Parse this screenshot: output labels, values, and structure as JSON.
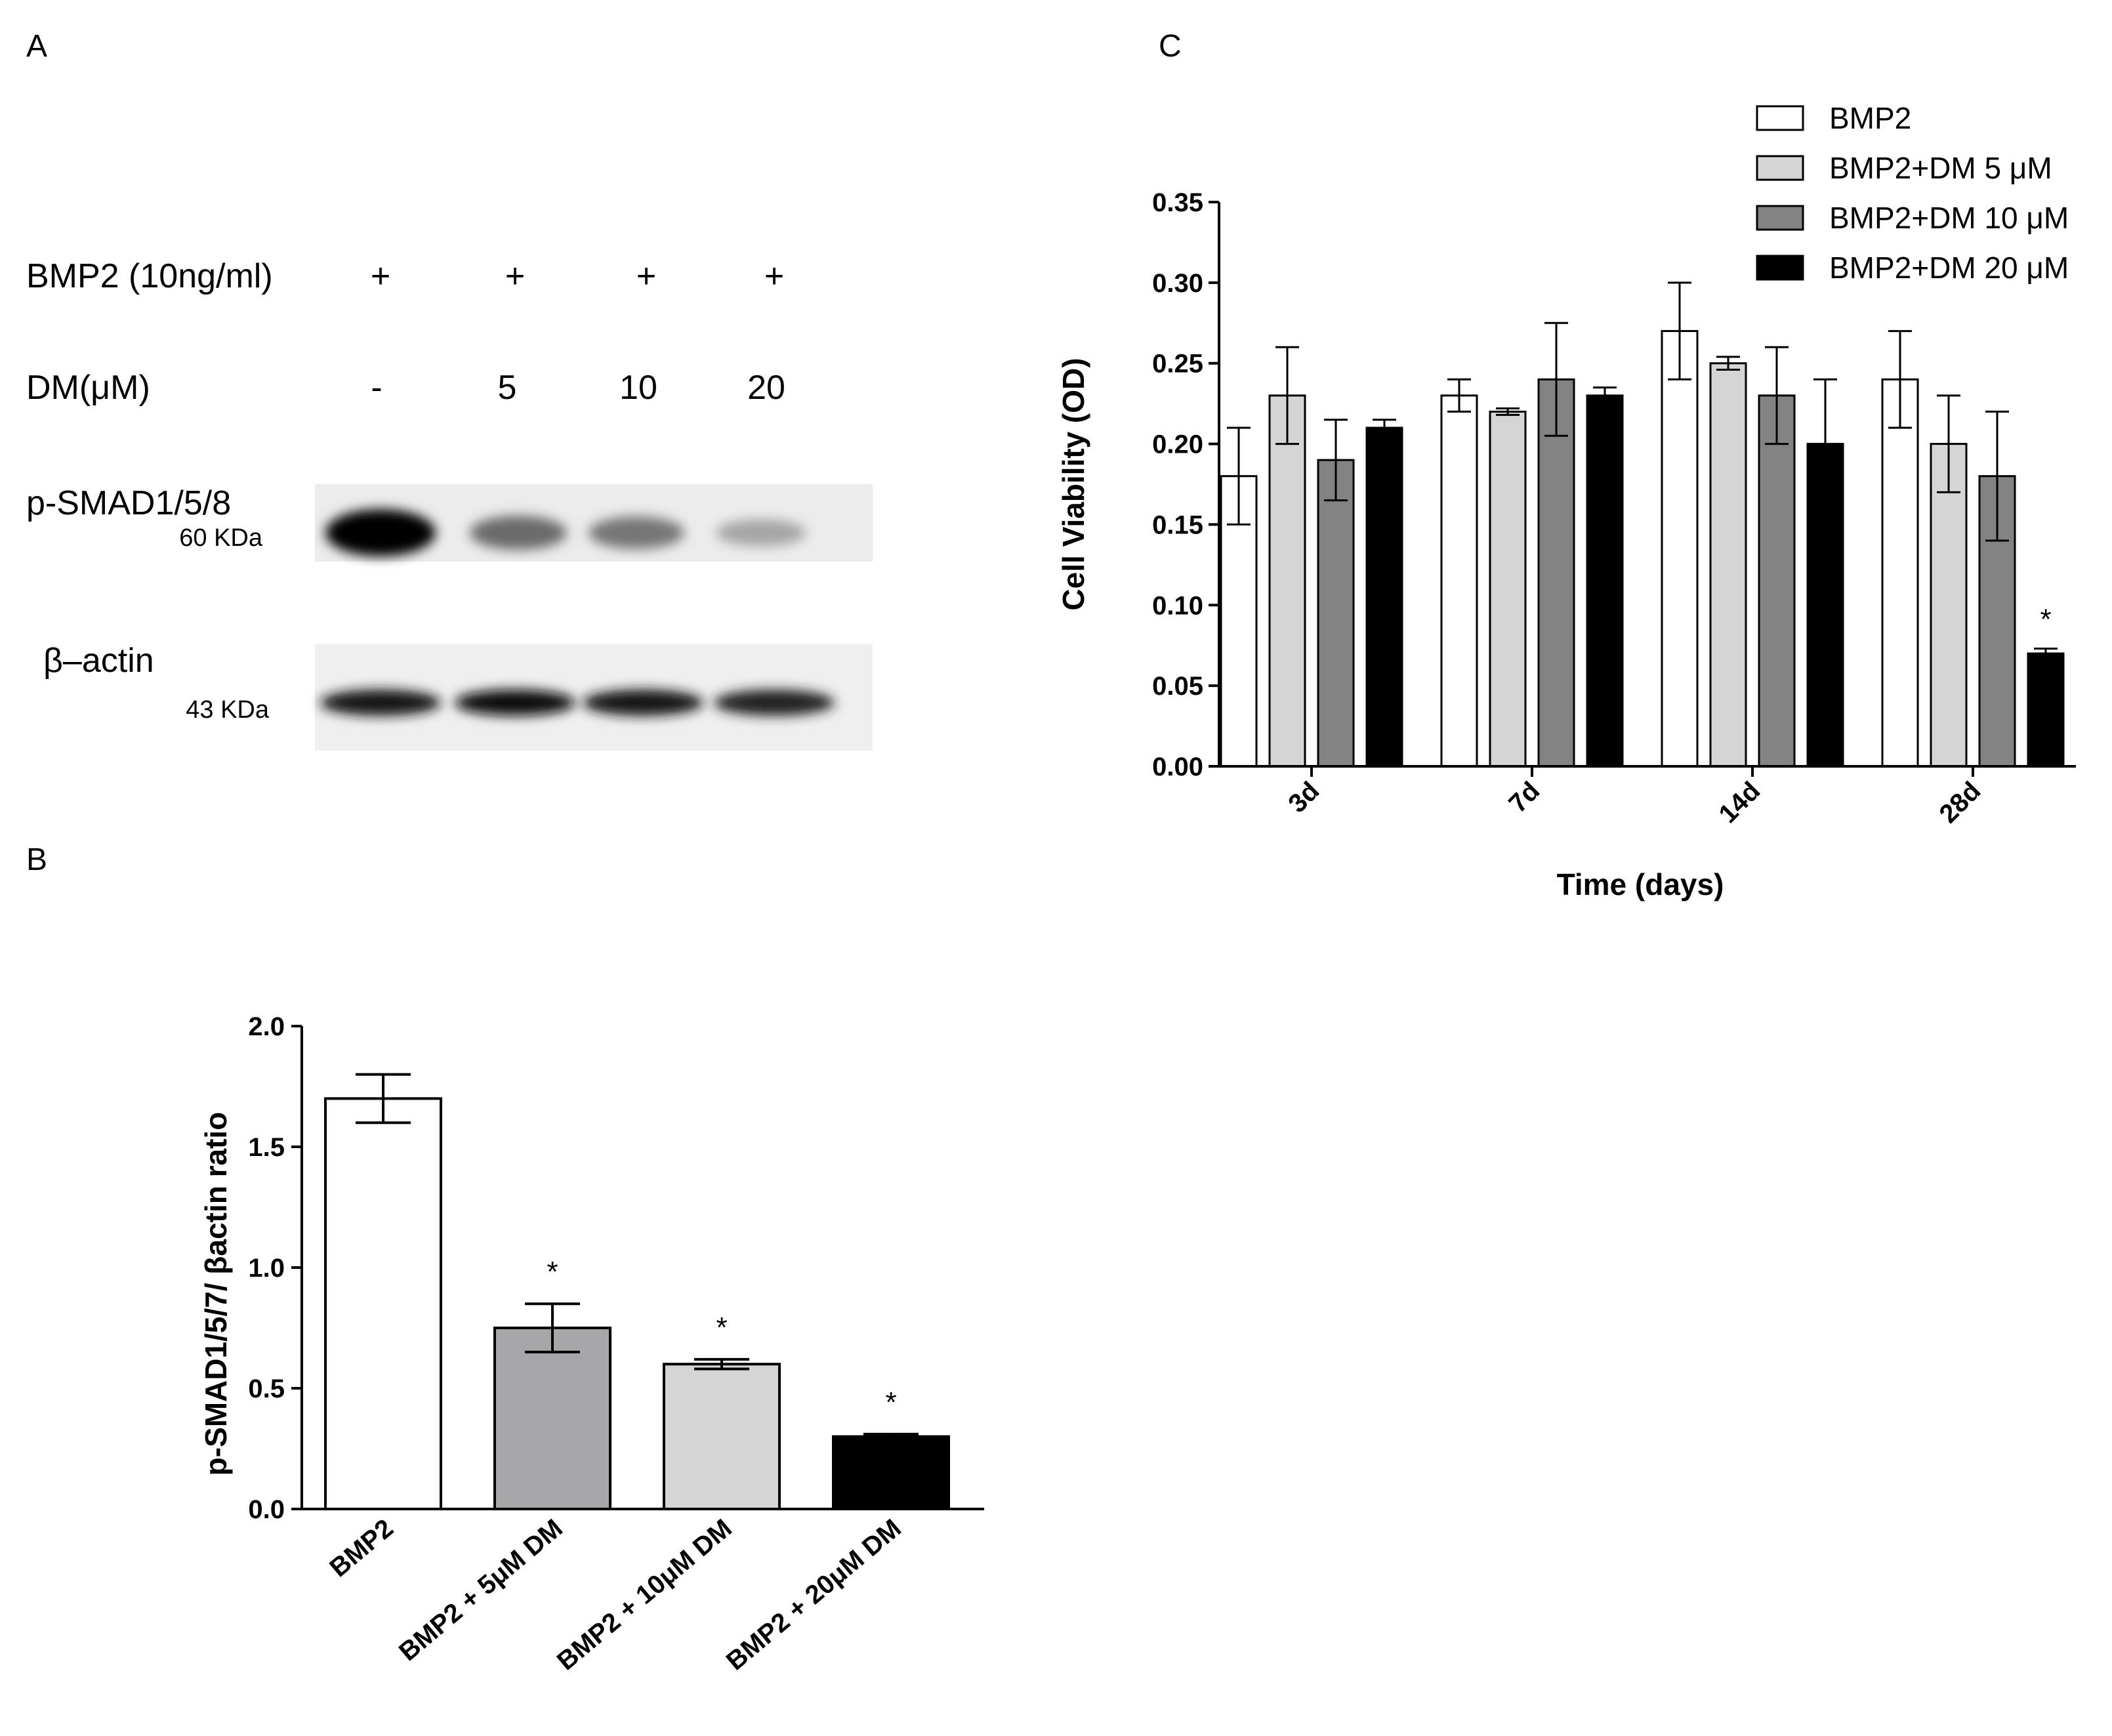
{
  "panels": {
    "a": "A",
    "b": "B",
    "c": "C"
  },
  "western_blot": {
    "row_labels": {
      "bmp2": "BMP2 (10ng/ml)",
      "dm": "DM(μM)",
      "psmad": "p-SMAD1/5/8",
      "psmad_kda": "60 KDa",
      "actin": "β–actin",
      "actin_kda": "43 KDa"
    },
    "bmp2_signs": [
      "+",
      "+",
      "+",
      "+"
    ],
    "dm_values": [
      "-",
      "5",
      "10",
      "20"
    ],
    "psmad_band_intensity": [
      1.0,
      0.55,
      0.5,
      0.3
    ],
    "actin_band_intensity": [
      0.95,
      1.0,
      0.95,
      0.9
    ]
  },
  "chart_data": [
    {
      "type": "bar",
      "panel": "B",
      "title": "",
      "xlabel": "",
      "ylabel": "p-SMAD1/5/7/ βactin ratio",
      "ylim": [
        0,
        2.0
      ],
      "yticks": [
        "0.0",
        "0.5",
        "1.0",
        "1.5",
        "2.0"
      ],
      "categories": [
        "BMP2",
        "BMP2 + 5μM DM",
        "BMP2 + 10μM DM",
        "BMP2 + 20μM DM"
      ],
      "values": [
        1.7,
        0.75,
        0.6,
        0.3
      ],
      "errors": [
        0.1,
        0.1,
        0.02,
        0.01
      ],
      "significance": [
        "",
        "*",
        "*",
        "*"
      ],
      "colors": [
        "#ffffff",
        "#a7a6a9",
        "#d5d5d5",
        "#000000"
      ]
    },
    {
      "type": "bar",
      "panel": "C",
      "title": "",
      "xlabel": "Time (days)",
      "ylabel": "Cell Viability (OD)",
      "ylim": [
        0,
        0.35
      ],
      "yticks": [
        "0.00",
        "0.05",
        "0.10",
        "0.15",
        "0.20",
        "0.25",
        "0.30",
        "0.35"
      ],
      "categories": [
        "3d",
        "7d",
        "14d",
        "28d"
      ],
      "legend_position": "top-right",
      "series": [
        {
          "name": "BMP2",
          "color": "#ffffff",
          "values": [
            0.18,
            0.23,
            0.27,
            0.24
          ],
          "errors": [
            0.03,
            0.01,
            0.03,
            0.03
          ],
          "significance": [
            "",
            "",
            "",
            ""
          ]
        },
        {
          "name": "BMP2+DM 5 μM",
          "color": "#d5d5d5",
          "values": [
            0.23,
            0.22,
            0.25,
            0.2
          ],
          "errors": [
            0.03,
            0.002,
            0.004,
            0.03
          ],
          "significance": [
            "",
            "",
            "",
            ""
          ]
        },
        {
          "name": "BMP2+DM 10 μM",
          "color": "#838383",
          "values": [
            0.19,
            0.24,
            0.23,
            0.18
          ],
          "errors": [
            0.025,
            0.035,
            0.03,
            0.04
          ],
          "significance": [
            "",
            "",
            "",
            ""
          ]
        },
        {
          "name": "BMP2+DM 20 μM",
          "color": "#000000",
          "values": [
            0.21,
            0.23,
            0.2,
            0.07
          ],
          "errors": [
            0.005,
            0.005,
            0.04,
            0.003
          ],
          "significance": [
            "",
            "",
            "",
            "*"
          ]
        }
      ]
    }
  ]
}
